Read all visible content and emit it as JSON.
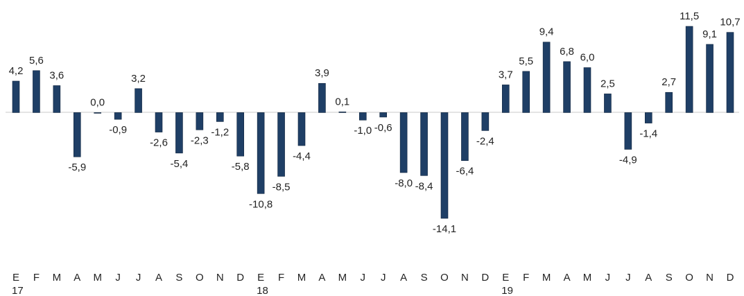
{
  "chart_data": {
    "type": "bar",
    "categories": [
      "E",
      "F",
      "M",
      "A",
      "M",
      "J",
      "J",
      "A",
      "S",
      "O",
      "N",
      "D",
      "E",
      "F",
      "M",
      "A",
      "M",
      "J",
      "J",
      "A",
      "S",
      "O",
      "N",
      "D",
      "E",
      "F",
      "M",
      "A",
      "M",
      "J",
      "J",
      "A",
      "S",
      "O",
      "N",
      "D"
    ],
    "year_labels": [
      "17",
      null,
      null,
      null,
      null,
      null,
      null,
      null,
      null,
      null,
      null,
      null,
      "18",
      null,
      null,
      null,
      null,
      null,
      null,
      null,
      null,
      null,
      null,
      null,
      "19",
      null,
      null,
      null,
      null,
      null,
      null,
      null,
      null,
      null,
      null,
      null
    ],
    "values": [
      4.2,
      5.6,
      3.6,
      -5.9,
      0.0,
      -0.9,
      3.2,
      -2.6,
      -5.4,
      -2.3,
      -1.2,
      -5.8,
      -10.8,
      -8.5,
      -4.4,
      3.9,
      0.1,
      -1.0,
      -0.6,
      -8.0,
      -8.4,
      -14.1,
      -6.4,
      -2.4,
      3.7,
      5.5,
      9.4,
      6.8,
      6.0,
      2.5,
      -4.9,
      -1.4,
      2.7,
      11.5,
      9.1,
      10.7
    ],
    "value_labels": [
      "4,2",
      "5,6",
      "3,6",
      "-5,9",
      "0,0",
      "-0,9",
      "3,2",
      "-2,6",
      "-5,4",
      "-2,3",
      "-1,2",
      "-5,8",
      "-10,8",
      "-8,5",
      "-4,4",
      "3,9",
      "0,1",
      "-1,0",
      "-0,6",
      "-8,0",
      "-8,4",
      "-14,1",
      "-6,4",
      "-2,4",
      "3,7",
      "5,5",
      "9,4",
      "6,8",
      "6,0",
      "2,5",
      "-4,9",
      "-1,4",
      "2,7",
      "11,5",
      "9,1",
      "10,7"
    ],
    "color": "#1f3f66"
  }
}
